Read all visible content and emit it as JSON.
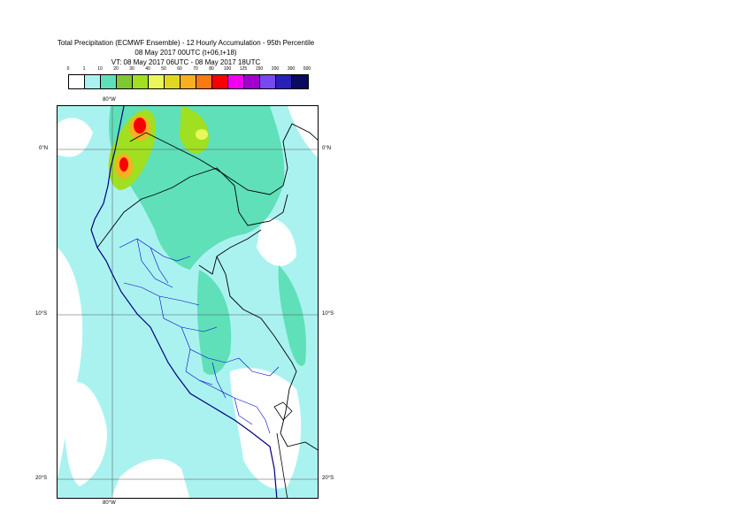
{
  "header": {
    "line1": "Total Precipitation (ECMWF Ensemble) - 12 Hourly Accumulation - 95th Percentile",
    "line2": "08 May 2017 00UTC (t+06,t+18)",
    "line3": "VT: 08 May 2017 06UTC - 08 May 2017 18UTC"
  },
  "legend": {
    "ticks": [
      "0",
      "1",
      "10",
      "20",
      "30",
      "40",
      "50",
      "60",
      "70",
      "80",
      "100",
      "125",
      "150",
      "200",
      "300",
      "500"
    ],
    "colors": [
      "#ffffff",
      "#aaf2f0",
      "#5fe0b8",
      "#7ec832",
      "#a0e020",
      "#e8f85a",
      "#e0d820",
      "#f8b020",
      "#f87a10",
      "#f80000",
      "#f000f0",
      "#a000d0",
      "#7848f0",
      "#2820b8",
      "#0a0a60"
    ]
  },
  "map": {
    "lon_labels": {
      "top": "80°W",
      "bottom": "80°W"
    },
    "lat_labels": [
      {
        "left": "0°N",
        "right": "0°N"
      },
      {
        "left": "10°S",
        "right": "10°S"
      },
      {
        "left": "20°S",
        "right": "20°S"
      }
    ],
    "colors": {
      "ocean_light": "#aaf2f0",
      "land_green": "#5fe0b8",
      "heavy": "#a0e020",
      "coast": "#000080"
    }
  }
}
